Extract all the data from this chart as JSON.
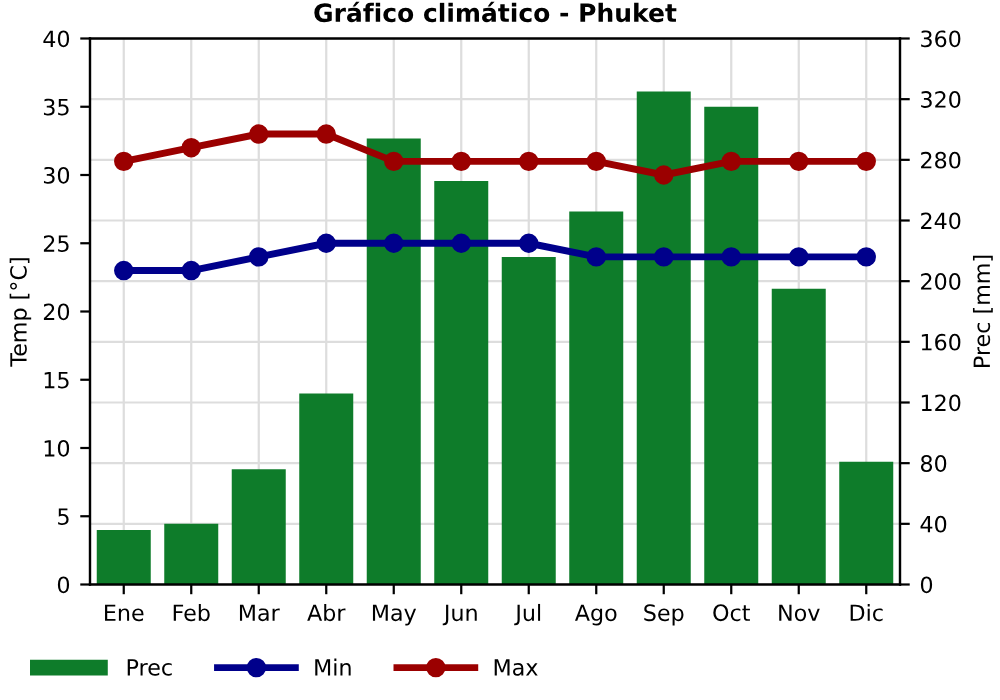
{
  "chart_data": {
    "type": "bar",
    "title": "Gráfico climático - Phuket",
    "ylabel": "Temp [°C]",
    "y2label": "Prec [mm]",
    "categories": [
      "Ene",
      "Feb",
      "Mar",
      "Abr",
      "May",
      "Jun",
      "Jul",
      "Ago",
      "Sep",
      "Oct",
      "Nov",
      "Dic"
    ],
    "series": [
      {
        "name": "Prec",
        "axis": "y2",
        "color": "#0e7c2a",
        "values": [
          36,
          40,
          76,
          126,
          294,
          266,
          216,
          246,
          325,
          315,
          195,
          81
        ]
      },
      {
        "name": "Min",
        "type": "line",
        "color": "#00008b",
        "marker": "circle",
        "values": [
          23,
          23,
          24,
          25,
          25,
          25,
          25,
          24,
          24,
          24,
          24,
          24
        ]
      },
      {
        "name": "Max",
        "type": "line",
        "color": "#9b0000",
        "marker": "circle",
        "values": [
          31,
          32,
          33,
          33,
          31,
          31,
          31,
          31,
          30,
          31,
          31,
          31
        ]
      }
    ],
    "ylim": [
      0,
      40
    ],
    "yticks": [
      0,
      5,
      10,
      15,
      20,
      25,
      30,
      35,
      40
    ],
    "y2lim": [
      0,
      360
    ],
    "y2ticks": [
      0,
      40,
      80,
      120,
      160,
      200,
      240,
      280,
      320,
      360
    ],
    "grid": true,
    "legend": "bottom"
  }
}
